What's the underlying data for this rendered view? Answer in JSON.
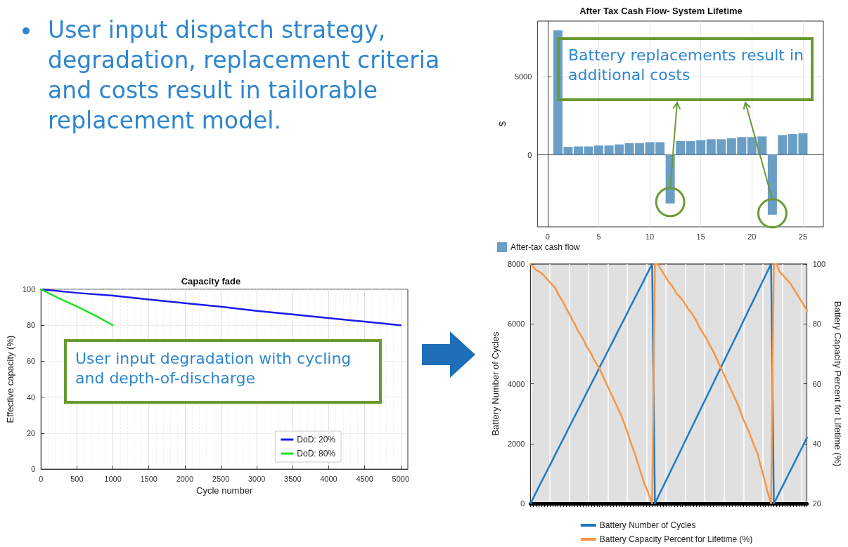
{
  "chart_data": [
    {
      "type": "other",
      "annotations": [
        "User input dispatch strategy, degradation, replacement criteria and costs result in tailorable replacement model."
      ]
    },
    {
      "type": "bar",
      "title": "After Tax Cash Flow- System Lifetime",
      "ylabel": "$",
      "x": [
        1,
        2,
        3,
        4,
        5,
        6,
        7,
        8,
        9,
        10,
        11,
        12,
        13,
        14,
        15,
        16,
        17,
        18,
        19,
        20,
        21,
        22,
        23,
        24,
        25
      ],
      "series": [
        {
          "name": "After-tax cash flow",
          "color": "#6a9ec5",
          "values": [
            7960,
            510,
            540,
            540,
            600,
            600,
            670,
            750,
            750,
            810,
            810,
            -3110,
            880,
            880,
            940,
            1000,
            1000,
            1060,
            1140,
            1140,
            1180,
            -3830,
            1270,
            1330,
            1390
          ]
        }
      ],
      "xlim": [
        -1,
        27
      ],
      "xticks": [
        0,
        5,
        10,
        15,
        20,
        25
      ],
      "ylim": [
        -4600,
        8560
      ],
      "yticks": [
        0,
        5000
      ],
      "grid": true,
      "legend": "bottom left",
      "annotations": [
        "Battery replacements result in additional costs"
      ]
    },
    {
      "type": "line",
      "title": "Capacity fade",
      "xlabel": "Cycle number",
      "ylabel": "Effective capacity (%)",
      "series": [
        {
          "name": "DoD: 20%",
          "color": "#1a1aee",
          "x": [
            0,
            500,
            1000,
            1500,
            2000,
            2500,
            3000,
            3500,
            4000,
            4500,
            5000
          ],
          "values": [
            100,
            98,
            96.5,
            94.3,
            92.3,
            90.3,
            88,
            86,
            84,
            82,
            80
          ]
        },
        {
          "name": "DoD: 80%",
          "color": "#22e022",
          "x": [
            0,
            250,
            500,
            750,
            1000
          ],
          "values": [
            100,
            95,
            90.5,
            85.5,
            80
          ]
        }
      ],
      "xlim": [
        0,
        5100
      ],
      "xticks": [
        0,
        500,
        1000,
        1500,
        2000,
        2500,
        3000,
        3500,
        4000,
        4500,
        5000
      ],
      "ylim": [
        0,
        100
      ],
      "yticks": [
        0,
        20,
        40,
        60,
        80,
        100
      ],
      "grid": true,
      "legend": "bottom right",
      "marker": "none",
      "annotations": [
        "User input degradation with cycling and depth-of-discharge"
      ]
    },
    {
      "type": "line",
      "ylabel": "Battery Number of Cycles",
      "y2label": "Battery Capacity Percent for Lifetime (%)",
      "categories": [
        null,
        null,
        null,
        null,
        null,
        null,
        null,
        null,
        null,
        null,
        null,
        null,
        null,
        null,
        null,
        null,
        null,
        null,
        null,
        null,
        null,
        null,
        null,
        null,
        null,
        null,
        null,
        null,
        null,
        null,
        null,
        null,
        null,
        null,
        null,
        null,
        null,
        null,
        null,
        null,
        null,
        null,
        null,
        null,
        null,
        null,
        null,
        null,
        null,
        null,
        null,
        null,
        null,
        null,
        null,
        null,
        null,
        null,
        null,
        null,
        null,
        null,
        null,
        null,
        null,
        null,
        null,
        null,
        null,
        null,
        null,
        null,
        null,
        null,
        null,
        null,
        null,
        null,
        null,
        null,
        null,
        null,
        null,
        null,
        null,
        null,
        null,
        null,
        null,
        null,
        null,
        null,
        null,
        null,
        null,
        null,
        null,
        null,
        null,
        null,
        null
      ],
      "series": [
        {
          "name": "Battery Number of Cycles",
          "color": "#1f7ac4",
          "values": [
            0,
            180,
            360,
            550,
            730,
            910,
            1090,
            1270,
            1450,
            1640,
            1820,
            2000,
            2180,
            2360,
            2550,
            2730,
            2910,
            3090,
            3270,
            3450,
            3640,
            3820,
            4000,
            4180,
            4360,
            4550,
            4730,
            4910,
            5090,
            5270,
            5450,
            5640,
            5820,
            6000,
            6180,
            6360,
            6550,
            6730,
            6910,
            7090,
            7270,
            7450,
            7640,
            7820,
            8000,
            0,
            190,
            380,
            570,
            760,
            950,
            1140,
            1330,
            1520,
            1710,
            1900,
            2100,
            2290,
            2480,
            2670,
            2860,
            3050,
            3240,
            3430,
            3620,
            3810,
            4000,
            4190,
            4380,
            4570,
            4760,
            4950,
            5140,
            5330,
            5520,
            5710,
            5900,
            6100,
            6290,
            6480,
            6670,
            6860,
            7050,
            7240,
            7430,
            7620,
            7810,
            8000,
            0,
            180,
            370,
            550,
            730,
            920,
            1100,
            1280,
            1470,
            1650,
            1830,
            2020,
            2200
          ]
        },
        {
          "name": "Battery Capacity Percent for Lifetime (%)",
          "color": "#f79646",
          "axis": "y2",
          "values": [
            100,
            99,
            98,
            97.5,
            97,
            96,
            95,
            94,
            93,
            92,
            90,
            88.5,
            87,
            85,
            83.5,
            81.5,
            80,
            78,
            76.5,
            75,
            73,
            71.5,
            70,
            68,
            66.5,
            65,
            63,
            61,
            59,
            57,
            55,
            53,
            51,
            49,
            46.5,
            44,
            41,
            38.5,
            36,
            33,
            30,
            27,
            25,
            22.5,
            20,
            100,
            100,
            98.5,
            97,
            95.5,
            94,
            93,
            91.5,
            90,
            89,
            88,
            86.5,
            85,
            84,
            82.5,
            81,
            79,
            77.5,
            76,
            74.5,
            72.5,
            71,
            69,
            67,
            65,
            63,
            61,
            59,
            57,
            55,
            53,
            50.5,
            48,
            46,
            44,
            41.5,
            39,
            37,
            33.5,
            30,
            26.5,
            23,
            20,
            100,
            100,
            97.5,
            96.5,
            95.5,
            94.5,
            93.5,
            92,
            90.5,
            89,
            87.5,
            86,
            84.5
          ]
        }
      ],
      "ylim": [
        0,
        8000
      ],
      "yticks": [
        0,
        2000,
        4000,
        6000,
        8000
      ],
      "y2lim": [
        20,
        100
      ],
      "y2ticks": [
        20,
        40,
        60,
        80,
        100
      ],
      "grid": "x",
      "legend": "bottom",
      "marker": "none"
    }
  ]
}
